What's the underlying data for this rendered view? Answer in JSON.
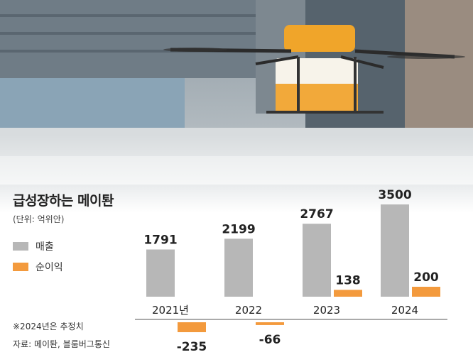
{
  "title": "급성장하는 메이퇀",
  "unit": "(단위: 억위안)",
  "legend": [
    {
      "name": "매출",
      "color": "#b7b7b7"
    },
    {
      "name": "순이익",
      "color": "#f39a3d"
    }
  ],
  "notes": [
    "※2024년은 추정치",
    "자료: 메이퇀, 블룸버그통신"
  ],
  "photo_description": "",
  "chart_data": {
    "type": "bar",
    "categories": [
      "2021년",
      "2022",
      "2023",
      "2024"
    ],
    "series": [
      {
        "name": "매출",
        "values": [
          1791,
          2199,
          2767,
          3500
        ],
        "color": "#b7b7b7"
      },
      {
        "name": "순이익",
        "values": [
          -235,
          -66,
          138,
          200
        ],
        "color": "#f39a3d"
      }
    ],
    "title": "급성장하는 메이퇀",
    "xlabel": "",
    "ylabel": "",
    "ylim": [
      -300,
      3600
    ],
    "grid": false,
    "legend_position": "left"
  }
}
